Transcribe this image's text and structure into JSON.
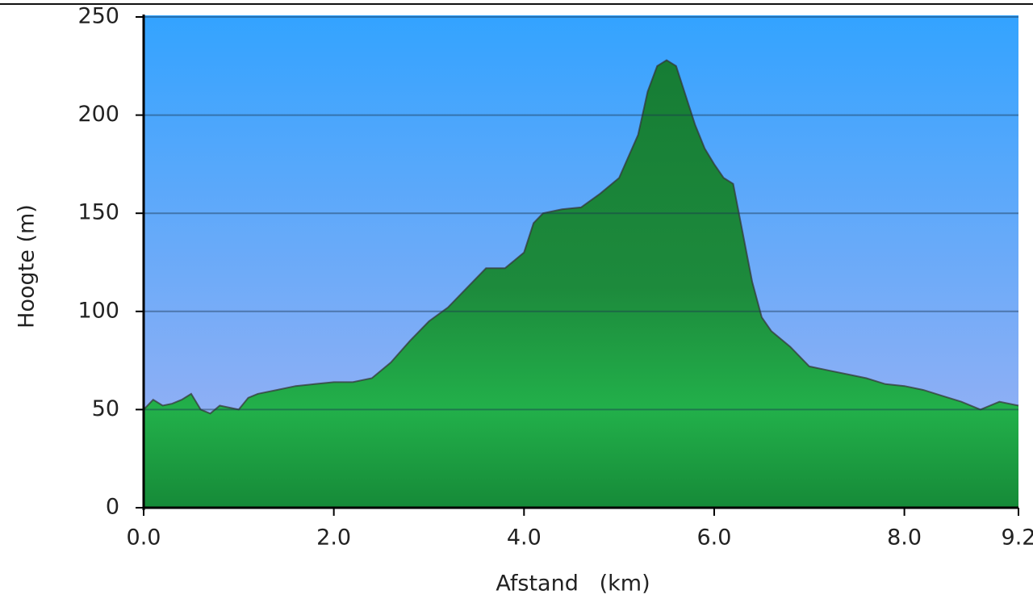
{
  "chart_data": {
    "type": "area",
    "xlabel": "Afstand   (km)",
    "ylabel": "Hoogte (m)",
    "x": [
      0.0,
      0.1,
      0.2,
      0.3,
      0.4,
      0.5,
      0.6,
      0.7,
      0.8,
      1.0,
      1.1,
      1.2,
      1.4,
      1.6,
      1.8,
      2.0,
      2.2,
      2.4,
      2.6,
      2.8,
      3.0,
      3.2,
      3.4,
      3.6,
      3.8,
      4.0,
      4.1,
      4.2,
      4.4,
      4.6,
      4.8,
      5.0,
      5.2,
      5.3,
      5.4,
      5.5,
      5.6,
      5.7,
      5.8,
      5.9,
      6.0,
      6.1,
      6.2,
      6.3,
      6.4,
      6.5,
      6.6,
      6.8,
      7.0,
      7.2,
      7.4,
      7.6,
      7.8,
      8.0,
      8.2,
      8.4,
      8.6,
      8.8,
      9.0,
      9.2
    ],
    "values": [
      50,
      55,
      52,
      53,
      55,
      58,
      50,
      48,
      52,
      50,
      56,
      58,
      60,
      62,
      63,
      64,
      64,
      66,
      74,
      85,
      95,
      102,
      112,
      122,
      122,
      130,
      145,
      150,
      152,
      153,
      160,
      168,
      190,
      212,
      225,
      228,
      225,
      210,
      195,
      183,
      175,
      168,
      165,
      140,
      115,
      97,
      90,
      82,
      72,
      70,
      68,
      66,
      63,
      62,
      60,
      57,
      54,
      50,
      54,
      52
    ],
    "color": "#1fa046",
    "xlim": [
      0,
      9.2
    ],
    "xticks": [
      {
        "value": 0,
        "label": "0.0"
      },
      {
        "value": 2,
        "label": "2.0"
      },
      {
        "value": 4,
        "label": "4.0"
      },
      {
        "value": 6,
        "label": "6.0"
      },
      {
        "value": 8,
        "label": "8.0"
      },
      9.2
    ],
    "ylim": [
      0,
      250
    ],
    "yticks": [
      0,
      50,
      100,
      150,
      200,
      250
    ],
    "grid": true
  }
}
